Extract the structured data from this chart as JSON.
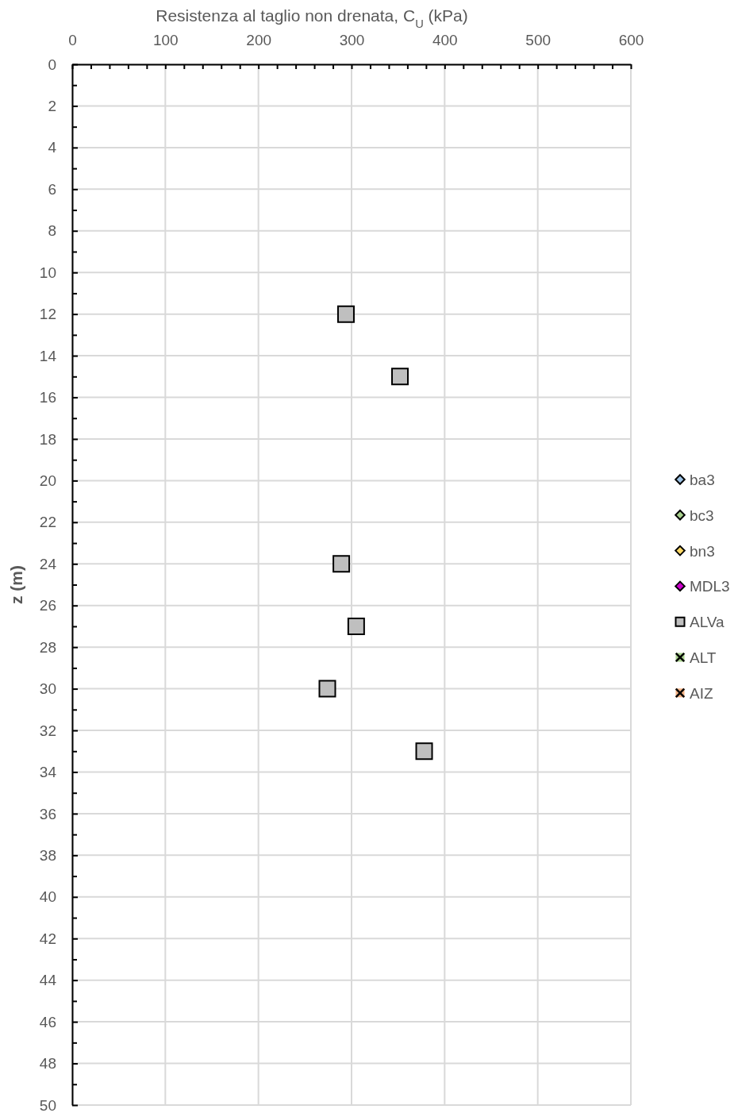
{
  "chart_data": {
    "type": "scatter",
    "xlabel": "Resistenza al taglio non drenata, C$_{U}$ (kPa)",
    "ylabel": "z (m)",
    "xlim": [
      0,
      600
    ],
    "xticks": [
      0,
      {
        "value": 20,
        "label": null
      },
      {
        "value": 40,
        "label": null
      },
      {
        "value": 60,
        "label": null
      },
      {
        "value": 80,
        "label": null
      },
      100,
      {
        "value": 120,
        "label": null
      },
      {
        "value": 140,
        "label": null
      },
      {
        "value": 160,
        "label": null
      },
      {
        "value": 180,
        "label": null
      },
      200,
      {
        "value": 220,
        "label": null
      },
      {
        "value": 240,
        "label": null
      },
      {
        "value": 260,
        "label": null
      },
      {
        "value": 280,
        "label": null
      },
      300,
      {
        "value": 320,
        "label": null
      },
      {
        "value": 340,
        "label": null
      },
      {
        "value": 360,
        "label": null
      },
      {
        "value": 380,
        "label": null
      },
      400,
      {
        "value": 420,
        "label": null
      },
      {
        "value": 440,
        "label": null
      },
      {
        "value": 460,
        "label": null
      },
      {
        "value": 480,
        "label": null
      },
      500,
      {
        "value": 520,
        "label": null
      },
      {
        "value": 540,
        "label": null
      },
      {
        "value": 560,
        "label": null
      },
      {
        "value": 580,
        "label": null
      },
      600
    ],
    "ylim": [
      50,
      0
    ],
    "yticks": [
      0,
      {
        "value": 1,
        "label": null
      },
      2,
      {
        "value": 3,
        "label": null
      },
      4,
      {
        "value": 5,
        "label": null
      },
      6,
      {
        "value": 7,
        "label": null
      },
      8,
      {
        "value": 9,
        "label": null
      },
      10,
      {
        "value": 11,
        "label": null
      },
      12,
      {
        "value": 13,
        "label": null
      },
      14,
      {
        "value": 15,
        "label": null
      },
      16,
      {
        "value": 17,
        "label": null
      },
      18,
      {
        "value": 19,
        "label": null
      },
      20,
      {
        "value": 21,
        "label": null
      },
      22,
      {
        "value": 23,
        "label": null
      },
      24,
      {
        "value": 25,
        "label": null
      },
      26,
      {
        "value": 27,
        "label": null
      },
      28,
      {
        "value": 29,
        "label": null
      },
      30,
      {
        "value": 31,
        "label": null
      },
      32,
      {
        "value": 33,
        "label": null
      },
      34,
      {
        "value": 35,
        "label": null
      },
      36,
      {
        "value": 37,
        "label": null
      },
      38,
      {
        "value": 39,
        "label": null
      },
      40,
      {
        "value": 41,
        "label": null
      },
      42,
      {
        "value": 43,
        "label": null
      },
      44,
      {
        "value": 45,
        "label": null
      },
      46,
      {
        "value": 47,
        "label": null
      },
      48,
      {
        "value": 49,
        "label": null
      },
      50
    ],
    "grid": true,
    "legend": "right",
    "series": [
      {
        "name": "ba3",
        "color": "#9dc3e6",
        "marker": "diamond"
      },
      {
        "name": "bc3",
        "color": "#a9d18e",
        "marker": "diamond"
      },
      {
        "name": "bn3",
        "color": "#ffd966",
        "marker": "diamond"
      },
      {
        "name": "MDL3",
        "color": "#cc00cc",
        "marker": "diamond"
      },
      {
        "name": "ALVa",
        "color": "#bfbfbf",
        "marker": "square",
        "x": [
          294,
          352,
          289,
          305,
          274,
          378
        ],
        "values": [
          12,
          15,
          24,
          27,
          30,
          33
        ]
      },
      {
        "name": "ALT",
        "color": "#a9d18e",
        "marker": "cross"
      },
      {
        "name": "AIZ",
        "color": "#f4b183",
        "marker": "cross"
      }
    ]
  }
}
